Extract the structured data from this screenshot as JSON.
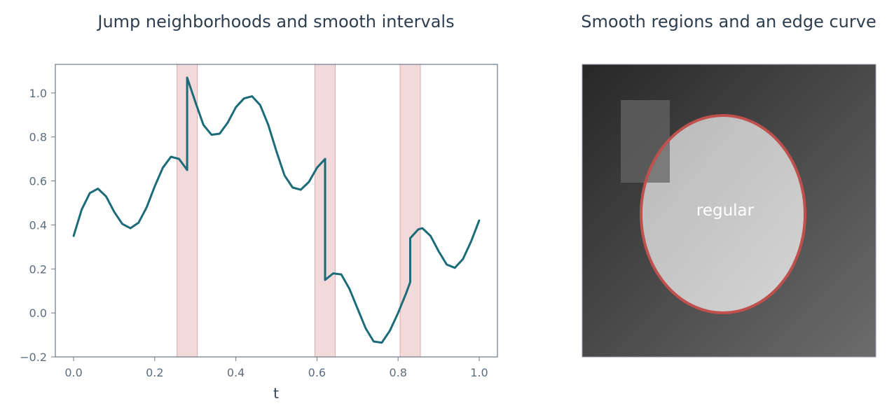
{
  "chart_data": [
    {
      "type": "line",
      "title": "Jump neighborhoods and smooth intervals",
      "xlabel": "t",
      "ylabel": "",
      "xlim": [
        -0.045,
        1.045
      ],
      "ylim": [
        -0.2,
        1.13
      ],
      "xticks": [
        0.0,
        0.2,
        0.4,
        0.6,
        0.8,
        1.0
      ],
      "xtick_labels": [
        "0.0",
        "0.2",
        "0.4",
        "0.6",
        "0.8",
        "1.0"
      ],
      "yticks": [
        -0.2,
        0.0,
        0.2,
        0.4,
        0.6,
        0.8,
        1.0
      ],
      "ytick_labels": [
        "−0.2",
        "0.0",
        "0.2",
        "0.4",
        "0.6",
        "0.8",
        "1.0"
      ],
      "shaded_intervals": [
        [
          0.255,
          0.305
        ],
        [
          0.595,
          0.645
        ],
        [
          0.805,
          0.855
        ]
      ],
      "series": [
        {
          "color": "#1b6b78",
          "points": [
            [
              0.0,
              0.35
            ],
            [
              0.02,
              0.47
            ],
            [
              0.04,
              0.545
            ],
            [
              0.06,
              0.565
            ],
            [
              0.08,
              0.53
            ],
            [
              0.1,
              0.46
            ],
            [
              0.12,
              0.405
            ],
            [
              0.14,
              0.385
            ],
            [
              0.16,
              0.41
            ],
            [
              0.18,
              0.48
            ],
            [
              0.2,
              0.575
            ],
            [
              0.22,
              0.66
            ],
            [
              0.24,
              0.71
            ],
            [
              0.26,
              0.7
            ],
            [
              0.28,
              0.65
            ],
            [
              0.28,
              1.07
            ],
            [
              0.3,
              0.96
            ],
            [
              0.32,
              0.855
            ],
            [
              0.34,
              0.81
            ],
            [
              0.36,
              0.815
            ],
            [
              0.38,
              0.865
            ],
            [
              0.4,
              0.935
            ],
            [
              0.42,
              0.975
            ],
            [
              0.44,
              0.985
            ],
            [
              0.46,
              0.945
            ],
            [
              0.48,
              0.855
            ],
            [
              0.5,
              0.735
            ],
            [
              0.52,
              0.625
            ],
            [
              0.54,
              0.57
            ],
            [
              0.56,
              0.56
            ],
            [
              0.58,
              0.595
            ],
            [
              0.6,
              0.66
            ],
            [
              0.62,
              0.7
            ],
            [
              0.62,
              0.15
            ],
            [
              0.64,
              0.18
            ],
            [
              0.66,
              0.175
            ],
            [
              0.68,
              0.11
            ],
            [
              0.7,
              0.02
            ],
            [
              0.72,
              -0.07
            ],
            [
              0.74,
              -0.13
            ],
            [
              0.76,
              -0.135
            ],
            [
              0.78,
              -0.08
            ],
            [
              0.8,
              0.0
            ],
            [
              0.82,
              0.09
            ],
            [
              0.83,
              0.14
            ],
            [
              0.83,
              0.34
            ],
            [
              0.85,
              0.38
            ],
            [
              0.86,
              0.385
            ],
            [
              0.88,
              0.35
            ],
            [
              0.9,
              0.28
            ],
            [
              0.92,
              0.22
            ],
            [
              0.94,
              0.205
            ],
            [
              0.96,
              0.245
            ],
            [
              0.98,
              0.325
            ],
            [
              1.0,
              0.42
            ]
          ]
        }
      ]
    },
    {
      "type": "image",
      "title": "Smooth regions and an edge curve",
      "annotations": [
        {
          "text": "regular"
        }
      ],
      "colors": {
        "background_dark": "#272727",
        "background_light": "#6c6c6c",
        "ellipse_fill_top": "#b9b9b9",
        "ellipse_fill_bottom": "#d4d4d4",
        "edge_curve": "#c0504d",
        "rectangle": "#646464"
      }
    }
  ]
}
